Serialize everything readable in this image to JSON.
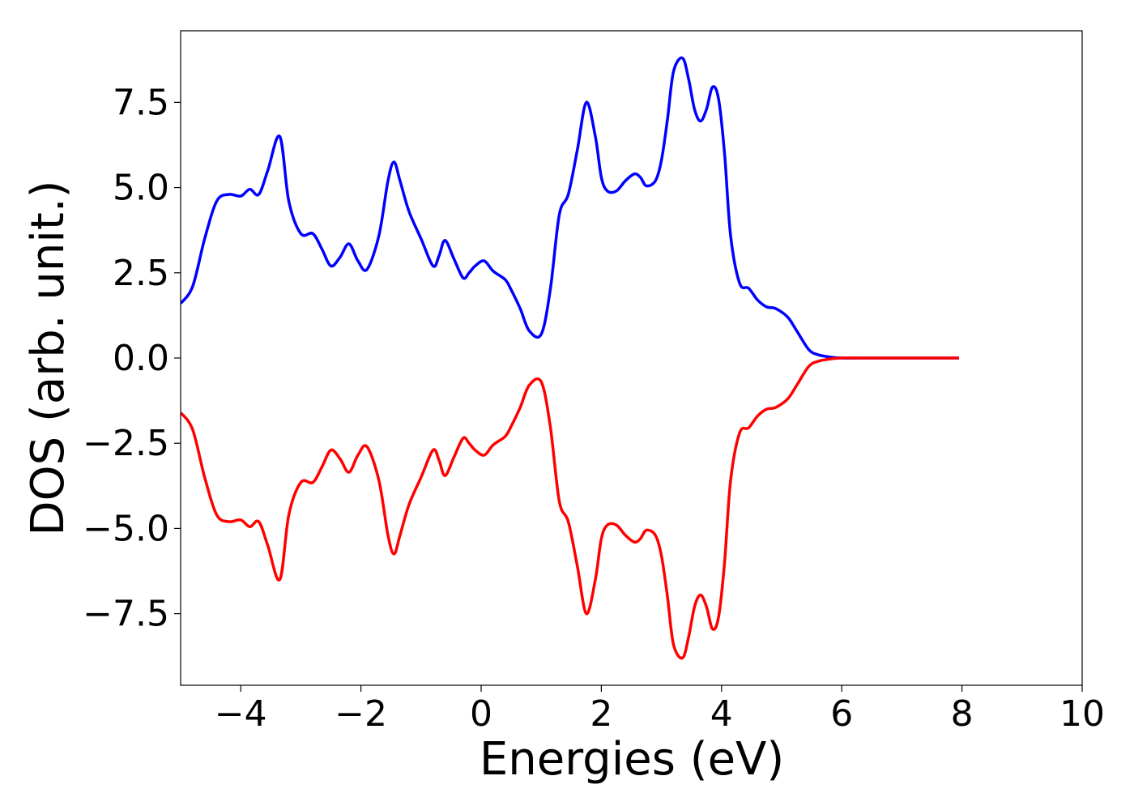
{
  "chart_data": {
    "type": "line",
    "title": "",
    "xlabel": "Energies (eV)",
    "ylabel": "DOS (arb. unit.)",
    "xlim": [
      -5,
      10
    ],
    "ylim": [
      -9.6,
      9.6
    ],
    "x_ticks": [
      -4,
      -2,
      0,
      2,
      4,
      6,
      8,
      10
    ],
    "x_tick_labels": [
      "−4",
      "−2",
      "0",
      "2",
      "4",
      "6",
      "8",
      "10"
    ],
    "y_ticks": [
      -7.5,
      -5.0,
      -2.5,
      0.0,
      2.5,
      5.0,
      7.5
    ],
    "y_tick_labels": [
      "−7.5",
      "−5.0",
      "−2.5",
      "0.0",
      "2.5",
      "5.0",
      "7.5"
    ],
    "grid": false,
    "legend": "none",
    "series": [
      {
        "color": "#0000ff",
        "x": [
          -5.0,
          -4.8,
          -4.6,
          -4.4,
          -4.2,
          -4.0,
          -3.85,
          -3.7,
          -3.55,
          -3.35,
          -3.2,
          -3.0,
          -2.8,
          -2.65,
          -2.5,
          -2.35,
          -2.2,
          -2.05,
          -1.9,
          -1.7,
          -1.55,
          -1.45,
          -1.35,
          -1.2,
          -1.0,
          -0.8,
          -0.7,
          -0.6,
          -0.45,
          -0.3,
          -0.2,
          -0.1,
          0.05,
          0.2,
          0.4,
          0.5,
          0.65,
          0.8,
          1.0,
          1.15,
          1.3,
          1.45,
          1.6,
          1.75,
          1.9,
          2.0,
          2.1,
          2.25,
          2.4,
          2.55,
          2.65,
          2.75,
          2.9,
          3.0,
          3.1,
          3.2,
          3.35,
          3.45,
          3.55,
          3.65,
          3.75,
          3.85,
          3.95,
          4.05,
          4.15,
          4.3,
          4.45,
          4.6,
          4.75,
          4.9,
          5.1,
          5.25,
          5.45,
          5.6,
          5.8,
          6.0,
          6.5,
          7.0,
          7.5,
          7.95
        ],
        "values": [
          1.6,
          2.1,
          3.5,
          4.6,
          4.8,
          4.75,
          4.95,
          4.8,
          5.5,
          6.5,
          4.6,
          3.65,
          3.65,
          3.2,
          2.7,
          2.95,
          3.35,
          2.85,
          2.6,
          3.6,
          5.2,
          5.75,
          5.2,
          4.3,
          3.5,
          2.7,
          3.0,
          3.45,
          2.9,
          2.35,
          2.5,
          2.7,
          2.85,
          2.55,
          2.3,
          2.0,
          1.45,
          0.8,
          0.7,
          2.0,
          4.2,
          4.8,
          6.1,
          7.5,
          6.5,
          5.3,
          4.9,
          4.9,
          5.2,
          5.4,
          5.3,
          5.05,
          5.2,
          5.8,
          7.0,
          8.4,
          8.8,
          8.2,
          7.3,
          6.95,
          7.3,
          7.95,
          7.6,
          6.0,
          3.6,
          2.2,
          2.05,
          1.7,
          1.5,
          1.45,
          1.2,
          0.8,
          0.25,
          0.1,
          0.03,
          0.0,
          0.0,
          0.0,
          0.0,
          0.0
        ]
      },
      {
        "color": "#ff0000",
        "x": [
          -5.0,
          -4.8,
          -4.6,
          -4.4,
          -4.2,
          -4.0,
          -3.85,
          -3.7,
          -3.55,
          -3.35,
          -3.2,
          -3.0,
          -2.8,
          -2.65,
          -2.5,
          -2.35,
          -2.2,
          -2.05,
          -1.9,
          -1.7,
          -1.55,
          -1.45,
          -1.35,
          -1.2,
          -1.0,
          -0.8,
          -0.7,
          -0.6,
          -0.45,
          -0.3,
          -0.2,
          -0.1,
          0.05,
          0.2,
          0.4,
          0.5,
          0.65,
          0.8,
          1.0,
          1.15,
          1.3,
          1.45,
          1.6,
          1.75,
          1.9,
          2.0,
          2.1,
          2.25,
          2.4,
          2.55,
          2.65,
          2.75,
          2.9,
          3.0,
          3.1,
          3.2,
          3.35,
          3.45,
          3.55,
          3.65,
          3.75,
          3.85,
          3.95,
          4.05,
          4.15,
          4.3,
          4.45,
          4.6,
          4.75,
          4.9,
          5.1,
          5.25,
          5.45,
          5.6,
          5.8,
          6.0,
          6.5,
          7.0,
          7.5,
          7.95
        ],
        "values": [
          -1.6,
          -2.1,
          -3.5,
          -4.6,
          -4.8,
          -4.75,
          -4.95,
          -4.8,
          -5.5,
          -6.5,
          -4.6,
          -3.65,
          -3.65,
          -3.2,
          -2.7,
          -2.95,
          -3.35,
          -2.85,
          -2.6,
          -3.6,
          -5.2,
          -5.75,
          -5.2,
          -4.3,
          -3.5,
          -2.7,
          -3.0,
          -3.45,
          -2.9,
          -2.35,
          -2.5,
          -2.7,
          -2.85,
          -2.55,
          -2.3,
          -2.0,
          -1.45,
          -0.8,
          -0.7,
          -2.0,
          -4.2,
          -4.8,
          -6.1,
          -7.5,
          -6.5,
          -5.3,
          -4.9,
          -4.9,
          -5.2,
          -5.4,
          -5.3,
          -5.05,
          -5.2,
          -5.8,
          -7.0,
          -8.4,
          -8.8,
          -8.2,
          -7.3,
          -6.95,
          -7.3,
          -7.95,
          -7.6,
          -6.0,
          -3.6,
          -2.2,
          -2.05,
          -1.7,
          -1.5,
          -1.45,
          -1.2,
          -0.8,
          -0.25,
          -0.1,
          -0.03,
          0.0,
          0.0,
          0.0,
          0.0,
          0.0
        ]
      }
    ]
  }
}
